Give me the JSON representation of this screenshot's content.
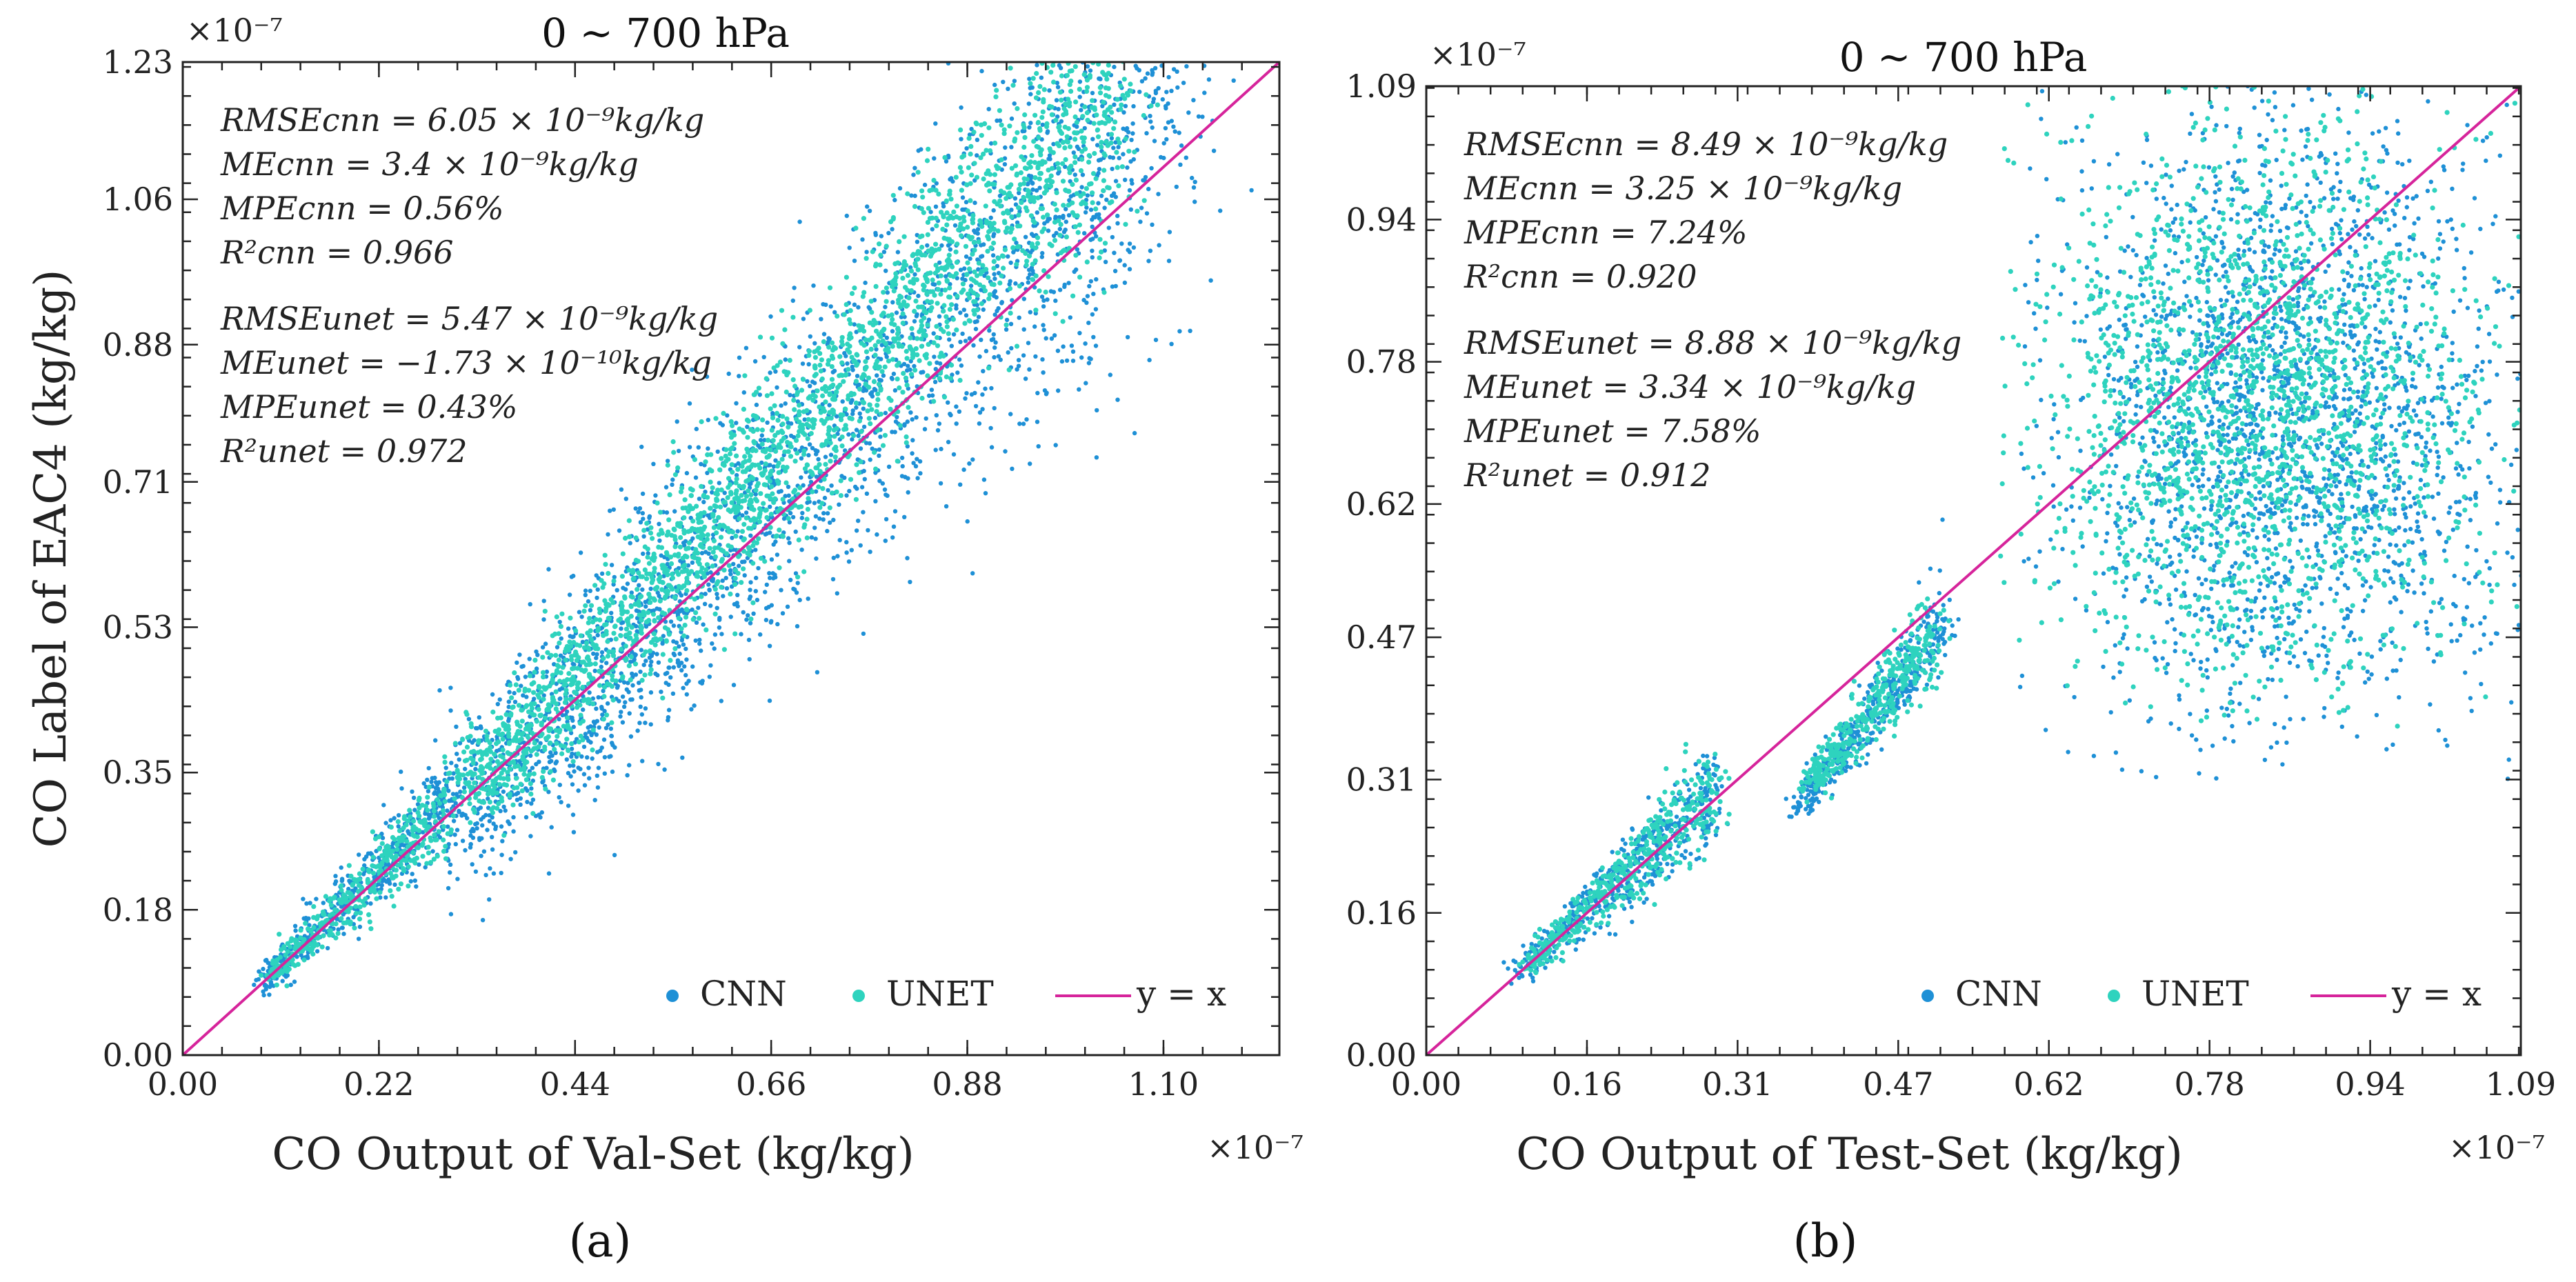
{
  "colors": {
    "cnn": "#1e90d6",
    "unet": "#2ed3be",
    "line": "#d6249b",
    "frame": "#222222"
  },
  "chart_data": [
    {
      "type": "scatter",
      "panel_caption": "(a)",
      "caption_letter": "a",
      "title": "0 ~ 700 hPa",
      "xlabel": "CO Output of Val-Set (kg/kg)",
      "ylabel": "CO Label of EAC4 (kg/kg)",
      "x_multiplier": "×10⁻⁷",
      "y_multiplier": "×10⁻⁷",
      "xlim": [
        0,
        1.23
      ],
      "ylim": [
        0,
        1.23
      ],
      "xticks": [
        0.0,
        0.22,
        0.44,
        0.66,
        0.88,
        1.1
      ],
      "xtick_labels": [
        "0.00",
        "0.22",
        "0.44",
        "0.66",
        "0.88",
        "1.10"
      ],
      "yticks": [
        0.0,
        0.18,
        0.35,
        0.53,
        0.71,
        0.88,
        1.06,
        1.23
      ],
      "ytick_labels": [
        "0.00",
        "0.18",
        "0.35",
        "0.53",
        "0.71",
        "0.88",
        "1.06",
        "1.23"
      ],
      "stats": [
        "RMSEcnn = 6.05 × 10⁻⁹kg/kg",
        "MEcnn = 3.4 × 10⁻⁹kg/kg",
        "MPEcnn = 0.56%",
        "R²cnn = 0.966",
        "RMSEunet = 5.47 × 10⁻⁹kg/kg",
        "MEunet = −1.73 × 10⁻¹⁰kg/kg",
        "MPEunet = 0.43%",
        "R²unet = 0.972"
      ],
      "legend": [
        "CNN",
        "UNET",
        "y = x"
      ],
      "series": [
        {
          "name": "CNN",
          "clusters": [
            {
              "x": [
                0.09,
                0.3
              ],
              "y": [
                0.09,
                0.32
              ],
              "n": 500
            },
            {
              "x": [
                0.3,
                1.12
              ],
              "y": [
                0.28,
                1.23
              ],
              "n": 2600,
              "spread": 0.1
            }
          ]
        },
        {
          "name": "UNET",
          "clusters": [
            {
              "x": [
                0.1,
                0.3
              ],
              "y": [
                0.1,
                0.31
              ],
              "n": 400
            },
            {
              "x": [
                0.32,
                1.05
              ],
              "y": [
                0.32,
                1.2
              ],
              "n": 2400,
              "spread": 0.06
            }
          ]
        },
        {
          "name": "y = x",
          "x": [
            0,
            1.23
          ],
          "y": [
            0,
            1.23
          ]
        }
      ]
    },
    {
      "type": "scatter",
      "panel_caption": "(b)",
      "caption_letter": "b",
      "title": "0 ~ 700 hPa",
      "xlabel": "CO Output of Test-Set (kg/kg)",
      "ylabel": "",
      "x_multiplier": "×10⁻⁷",
      "y_multiplier": "×10⁻⁷",
      "xlim": [
        0,
        1.09
      ],
      "ylim": [
        0,
        1.09
      ],
      "xticks": [
        0.0,
        0.16,
        0.31,
        0.47,
        0.62,
        0.78,
        0.94,
        1.09
      ],
      "xtick_labels": [
        "0.00",
        "0.16",
        "0.31",
        "0.47",
        "0.62",
        "0.78",
        "0.94",
        "1.09"
      ],
      "yticks": [
        0.0,
        0.16,
        0.31,
        0.47,
        0.62,
        0.78,
        0.94,
        1.09
      ],
      "ytick_labels": [
        "0.00",
        "0.16",
        "0.31",
        "0.47",
        "0.62",
        "0.78",
        "0.94",
        "1.09"
      ],
      "stats": [
        "RMSEcnn = 8.49 × 10⁻⁹kg/kg",
        "MEcnn = 3.25 × 10⁻⁹kg/kg",
        "MPEcnn = 7.24%",
        "R²cnn = 0.920",
        "RMSEunet = 8.88 × 10⁻⁹kg/kg",
        "MEunet = 3.34 × 10⁻⁹kg/kg",
        "MPEunet = 7.58%",
        "R²unet = 0.912"
      ],
      "legend": [
        "CNN",
        "UNET",
        "y = x"
      ],
      "series": [
        {
          "name": "CNN",
          "clusters": [
            {
              "x": [
                0.09,
                0.29
              ],
              "y": [
                0.09,
                0.3
              ],
              "n": 500
            },
            {
              "x": [
                0.37,
                0.52
              ],
              "y": [
                0.28,
                0.49
              ],
              "n": 450
            },
            {
              "x": [
                0.62,
                1.09
              ],
              "y": [
                0.34,
                1.09
              ],
              "n": 2200,
              "blob": true
            }
          ]
        },
        {
          "name": "UNET",
          "clusters": [
            {
              "x": [
                0.1,
                0.29
              ],
              "y": [
                0.1,
                0.3
              ],
              "n": 450
            },
            {
              "x": [
                0.38,
                0.51
              ],
              "y": [
                0.3,
                0.48
              ],
              "n": 400
            },
            {
              "x": [
                0.6,
                1.05
              ],
              "y": [
                0.4,
                1.05
              ],
              "n": 2000,
              "blob": true
            }
          ]
        },
        {
          "name": "y = x",
          "x": [
            0,
            1.09
          ],
          "y": [
            0,
            1.09
          ]
        }
      ]
    }
  ]
}
